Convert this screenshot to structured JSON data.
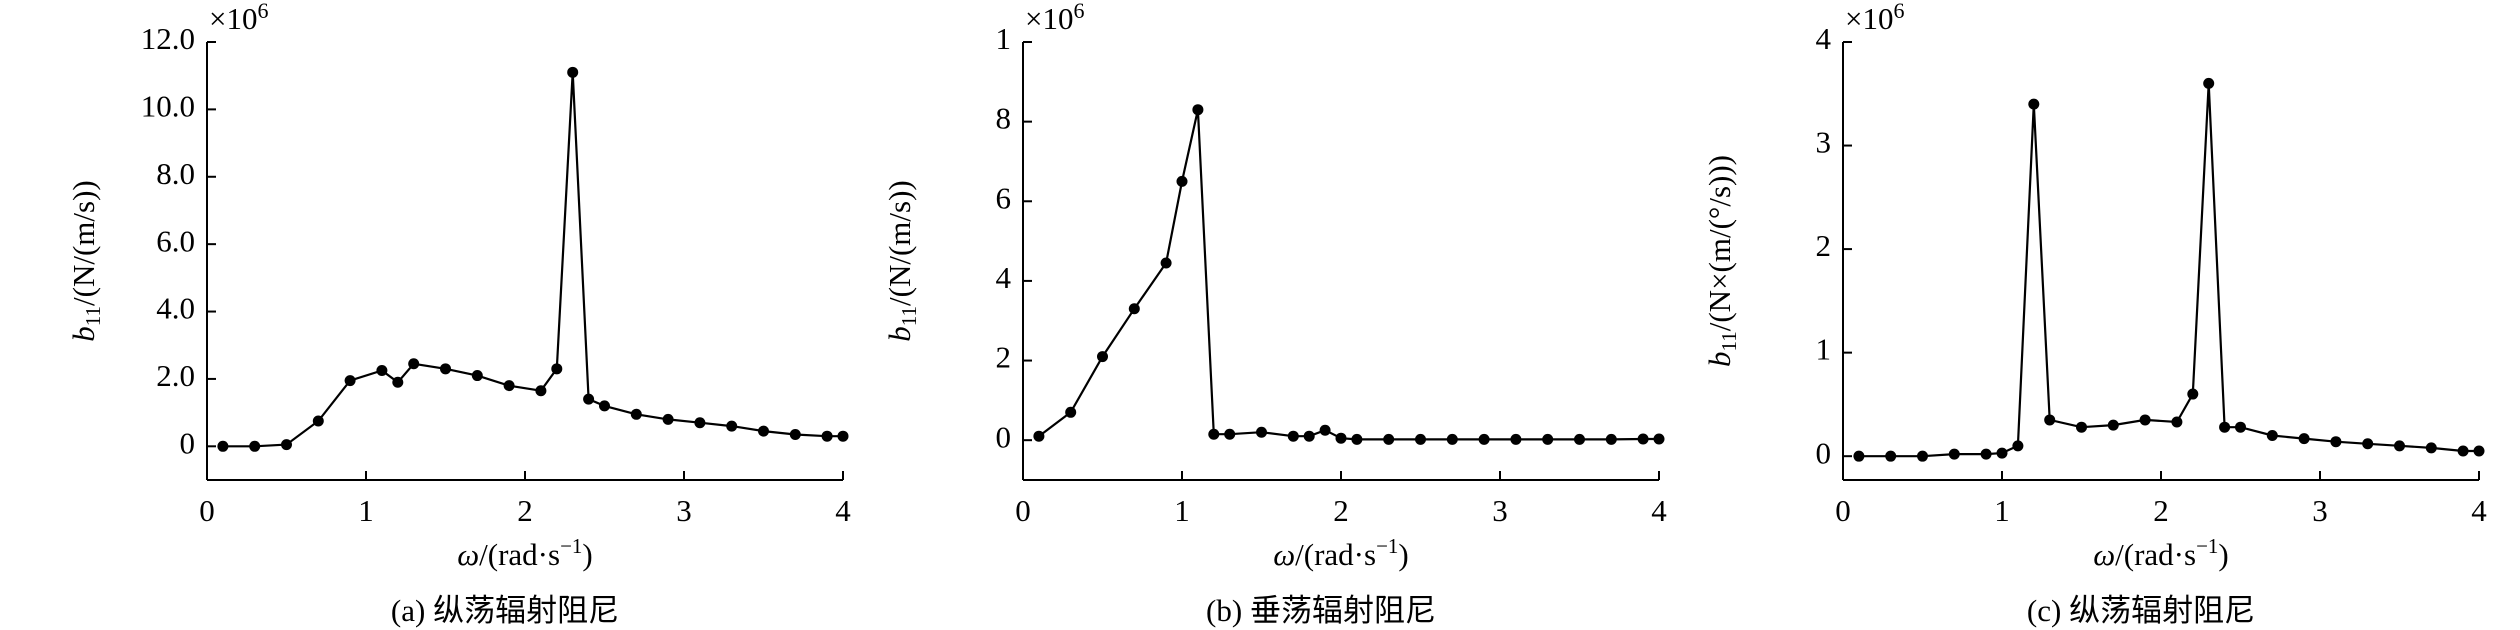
{
  "chart_data": [
    {
      "type": "line",
      "caption": "(a) 纵荡辐射阻尼",
      "ylabel": {
        "symbol": "b",
        "subscript": "11",
        "unit": "/(N/(m/s))"
      },
      "xlabel": {
        "symbol": "ω",
        "unit": "/(rad·s",
        "superscript": "−1",
        "close": ")"
      },
      "scale_label": {
        "base": "×10",
        "exponent": "6"
      },
      "xlim": [
        0,
        4
      ],
      "xticks": [
        0,
        1,
        2,
        3,
        4
      ],
      "ylim": [
        -1,
        12
      ],
      "yticks": [
        0,
        {
          "value": 2,
          "label": "2.0"
        },
        {
          "value": 4,
          "label": "4.0"
        },
        {
          "value": 6,
          "label": "6.0"
        },
        {
          "value": 8,
          "label": "8.0"
        },
        {
          "value": 10,
          "label": "10.0"
        },
        {
          "value": 12,
          "label": "12.0"
        }
      ],
      "series": [
        {
          "color": "#000000",
          "x": [
            0.1,
            0.3,
            0.5,
            0.7,
            0.9,
            1.1,
            1.2,
            1.3,
            1.5,
            1.7,
            1.9,
            2.1,
            2.2,
            2.3,
            2.4,
            2.5,
            2.7,
            2.9,
            3.1,
            3.3,
            3.5,
            3.7,
            3.9,
            4.0
          ],
          "values": [
            0,
            0,
            0.05,
            0.75,
            1.95,
            2.25,
            1.9,
            2.45,
            2.3,
            2.1,
            1.8,
            1.65,
            2.3,
            11.1,
            1.4,
            1.2,
            0.95,
            0.8,
            0.7,
            0.6,
            0.45,
            0.35,
            0.3,
            0.3
          ]
        }
      ]
    },
    {
      "type": "line",
      "caption": "(b) 垂荡辐射阻尼",
      "ylabel": {
        "symbol": "b",
        "subscript": "11",
        "unit": "/(N/(m/s))"
      },
      "xlabel": {
        "symbol": "ω",
        "unit": "/(rad·s",
        "superscript": "−1",
        "close": ")"
      },
      "scale_label": {
        "base": "×10",
        "exponent": "6"
      },
      "xlim": [
        0,
        4
      ],
      "xticks": [
        0,
        1,
        2,
        3,
        4
      ],
      "ylim": [
        -1,
        10
      ],
      "yticks": [
        0,
        2,
        4,
        6,
        8,
        {
          "value": 10,
          "label": "1"
        }
      ],
      "series": [
        {
          "color": "#000000",
          "x": [
            0.1,
            0.3,
            0.5,
            0.7,
            0.9,
            1.0,
            1.1,
            1.2,
            1.3,
            1.5,
            1.7,
            1.8,
            1.9,
            2.0,
            2.1,
            2.3,
            2.5,
            2.7,
            2.9,
            3.1,
            3.3,
            3.5,
            3.7,
            3.9,
            4.0
          ],
          "values": [
            0.1,
            0.7,
            2.1,
            3.3,
            4.45,
            6.5,
            8.3,
            0.15,
            0.15,
            0.2,
            0.1,
            0.1,
            0.25,
            0.05,
            0.02,
            0.02,
            0.02,
            0.02,
            0.02,
            0.02,
            0.02,
            0.02,
            0.02,
            0.03,
            0.03
          ]
        }
      ]
    },
    {
      "type": "line",
      "caption": "(c) 纵荡辐射阻尼",
      "ylabel": {
        "symbol": "b",
        "subscript": "11",
        "unit": "/(N×(m/(°/s)))"
      },
      "xlabel": {
        "symbol": "ω",
        "unit": "/(rad·s",
        "superscript": "−1",
        "close": ")"
      },
      "scale_label": {
        "base": "×10",
        "exponent": "6"
      },
      "xlim": [
        0,
        4
      ],
      "xticks": [
        0,
        1,
        2,
        3,
        4
      ],
      "ylim": [
        -0.23,
        4
      ],
      "yticks": [
        0,
        1,
        2,
        3,
        4
      ],
      "series": [
        {
          "color": "#000000",
          "x": [
            0.1,
            0.3,
            0.5,
            0.7,
            0.9,
            1.0,
            1.1,
            1.2,
            1.3,
            1.5,
            1.7,
            1.9,
            2.1,
            2.2,
            2.3,
            2.4,
            2.5,
            2.7,
            2.9,
            3.1,
            3.3,
            3.5,
            3.7,
            3.9,
            4.0
          ],
          "values": [
            0,
            0,
            0,
            0.02,
            0.02,
            0.03,
            0.1,
            3.4,
            0.35,
            0.28,
            0.3,
            0.35,
            0.33,
            0.6,
            3.6,
            0.28,
            0.28,
            0.2,
            0.17,
            0.14,
            0.12,
            0.1,
            0.08,
            0.05,
            0.05
          ]
        }
      ]
    }
  ]
}
